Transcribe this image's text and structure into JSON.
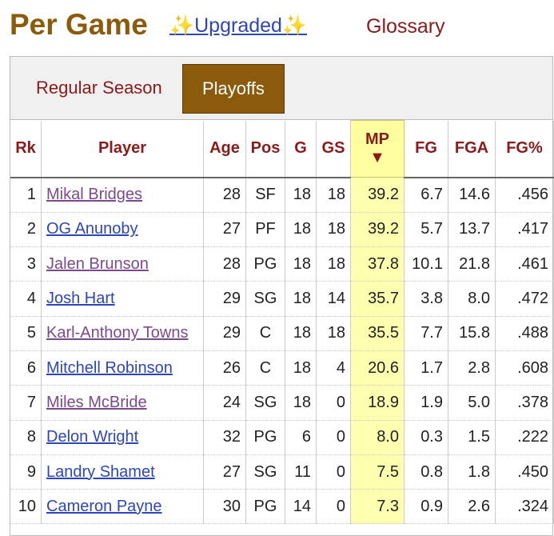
{
  "header": {
    "title": "Per Game",
    "upgraded_link": "✨Upgraded✨",
    "glossary_link": "Glossary"
  },
  "tabs": [
    "Regular Season",
    "Playoffs"
  ],
  "active_tab": 1,
  "table": {
    "columns": [
      "Rk",
      "Player",
      "Age",
      "Pos",
      "G",
      "GS",
      "MP",
      "FG",
      "FGA",
      "FG%"
    ],
    "sort_indicator": "▼",
    "sorted_column": 6,
    "rows": [
      {
        "cells": [
          "1",
          "Mikal Bridges",
          "28",
          "SF",
          "18",
          "18",
          "39.2",
          "6.7",
          "14.6",
          ".456"
        ],
        "visited": true
      },
      {
        "cells": [
          "2",
          "OG Anunoby",
          "27",
          "PF",
          "18",
          "18",
          "39.2",
          "5.7",
          "13.7",
          ".417"
        ],
        "visited": false
      },
      {
        "cells": [
          "3",
          "Jalen Brunson",
          "28",
          "PG",
          "18",
          "18",
          "37.8",
          "10.1",
          "21.8",
          ".461"
        ],
        "visited": true
      },
      {
        "cells": [
          "4",
          "Josh Hart",
          "29",
          "SG",
          "18",
          "14",
          "35.7",
          "3.8",
          "8.0",
          ".472"
        ],
        "visited": false
      },
      {
        "cells": [
          "5",
          "Karl-Anthony Towns",
          "29",
          "C",
          "18",
          "18",
          "35.5",
          "7.7",
          "15.8",
          ".488"
        ],
        "visited": true
      },
      {
        "cells": [
          "6",
          "Mitchell Robinson",
          "26",
          "C",
          "18",
          "4",
          "20.6",
          "1.7",
          "2.8",
          ".608"
        ],
        "visited": false
      },
      {
        "cells": [
          "7",
          "Miles McBride",
          "24",
          "SG",
          "18",
          "0",
          "18.9",
          "1.9",
          "5.0",
          ".378"
        ],
        "visited": true
      },
      {
        "cells": [
          "8",
          "Delon Wright",
          "32",
          "PG",
          "6",
          "0",
          "8.0",
          "0.3",
          "1.5",
          ".222"
        ],
        "visited": false
      },
      {
        "cells": [
          "9",
          "Landry Shamet",
          "27",
          "SG",
          "11",
          "0",
          "7.5",
          "0.8",
          "1.8",
          ".450"
        ],
        "visited": false
      },
      {
        "cells": [
          "10",
          "Cameron Payne",
          "30",
          "PG",
          "14",
          "0",
          "7.3",
          "0.9",
          "2.6",
          ".324"
        ],
        "visited": false
      }
    ]
  }
}
